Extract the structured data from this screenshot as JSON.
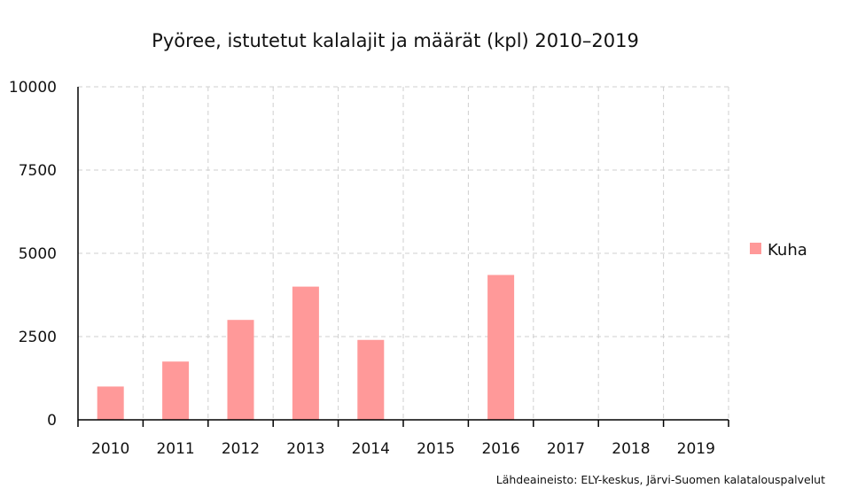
{
  "chart_data": {
    "type": "bar",
    "title": "Pyöree, istutetut kalalajit ja määrät (kpl) 2010–2019",
    "categories": [
      "2010",
      "2011",
      "2012",
      "2013",
      "2014",
      "2015",
      "2016",
      "2017",
      "2018",
      "2019"
    ],
    "series": [
      {
        "name": "Kuha",
        "color": "#ff9999",
        "values": [
          1000,
          1750,
          3000,
          4000,
          2400,
          0,
          4350,
          0,
          0,
          0
        ]
      }
    ],
    "ylim": [
      0,
      10000
    ],
    "yticks": [
      "0",
      "2500",
      "5000",
      "7500",
      "10000"
    ],
    "grid": true,
    "legend_position": "right",
    "source": "Lähdeaineisto: ELY-keskus, Järvi-Suomen kalatalouspalvelut"
  }
}
